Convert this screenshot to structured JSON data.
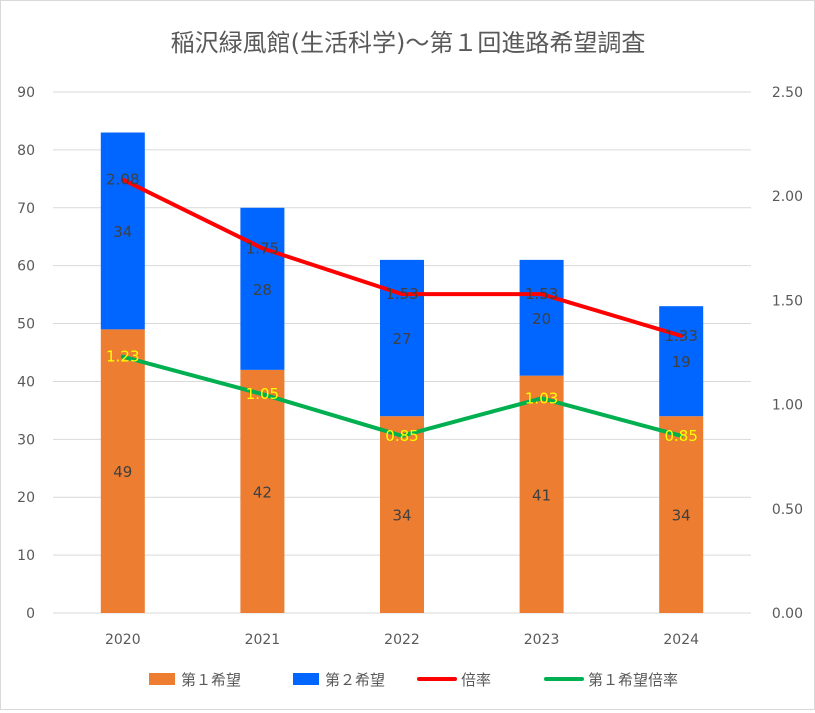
{
  "chart_data": {
    "type": "bar",
    "stacked": true,
    "title": "稲沢緑風館(生活科学)～第１回進路希望調査",
    "categories": [
      "2020",
      "2021",
      "2022",
      "2023",
      "2024"
    ],
    "series": [
      {
        "name": "第１希望",
        "type": "bar",
        "axis": "left",
        "color": "#ED7D31",
        "label_color": "#404040",
        "values": [
          49,
          42,
          34,
          41,
          34
        ]
      },
      {
        "name": "第２希望",
        "type": "bar",
        "axis": "left",
        "color": "#0066FF",
        "label_color": "#404040",
        "values": [
          34,
          28,
          27,
          20,
          19
        ]
      },
      {
        "name": "倍率",
        "type": "line",
        "axis": "right",
        "color": "#FF0000",
        "label_color": "#404040",
        "values": [
          "2.08",
          "1.75",
          "1.53",
          "1.53",
          "1.33"
        ]
      },
      {
        "name": "第１希望倍率",
        "type": "line",
        "axis": "right",
        "color": "#00B050",
        "label_color": "#FFFF00",
        "values": [
          "1.23",
          "1.05",
          "0.85",
          "1.03",
          "0.85"
        ]
      }
    ],
    "y_left": {
      "min": 0,
      "max": 90,
      "step": 10,
      "ticks": [
        "0",
        "10",
        "20",
        "30",
        "40",
        "50",
        "60",
        "70",
        "80",
        "90"
      ]
    },
    "y_right": {
      "min": 0,
      "max": 2.5,
      "step": 0.5,
      "ticks": [
        "0.00",
        "0.50",
        "1.00",
        "1.50",
        "2.00",
        "2.50"
      ]
    },
    "grid": true,
    "legend_position": "bottom"
  }
}
